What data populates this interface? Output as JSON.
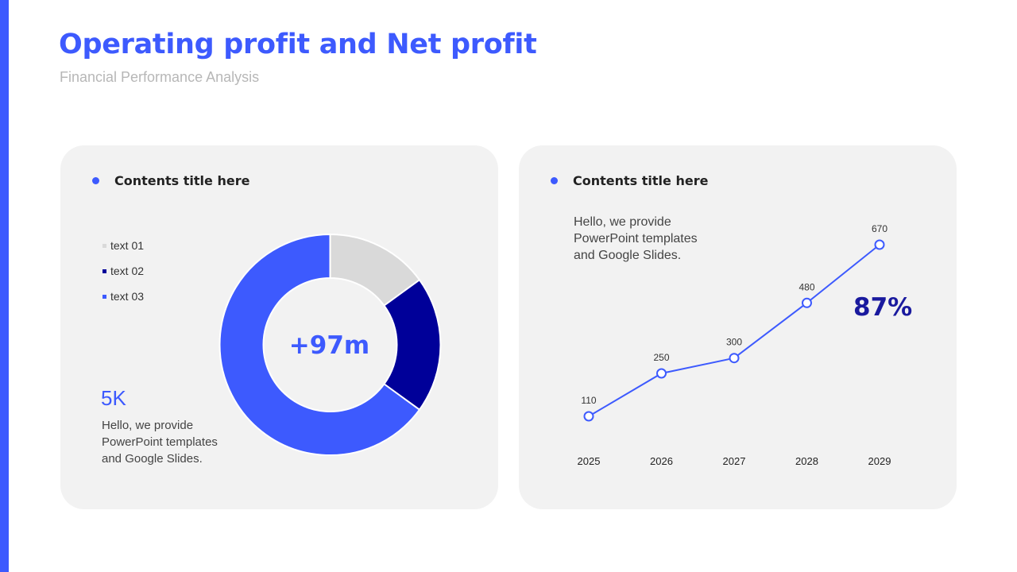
{
  "slide": {
    "title": "Operating profit and Net profit",
    "subtitle": "Financial Performance Analysis"
  },
  "colors": {
    "accent": "#3d5afe",
    "dark_blue": "#000099",
    "light_gray": "#d9d9d9",
    "card_bg": "#f2f2f2"
  },
  "left_panel": {
    "title": "Contents title here",
    "center_label": "+97m",
    "stat_value": "5K",
    "stat_description": "Hello, we provide\nPowerPoint templates\nand Google Slides."
  },
  "right_panel": {
    "title": "Contents title here",
    "description": "Hello, we provide\nPowerPoint templates\nand Google Slides.",
    "highlight_value": "87%"
  },
  "chart_data": [
    {
      "type": "pie",
      "style": "donut",
      "categories": [
        "text 01",
        "text 02",
        "text 03"
      ],
      "values": [
        15,
        20,
        65
      ],
      "colors": [
        "#d9d9d9",
        "#000099",
        "#3d5afe"
      ],
      "legend_position": "left"
    },
    {
      "type": "line",
      "x": [
        "2025",
        "2026",
        "2027",
        "2028",
        "2029"
      ],
      "series": [
        {
          "values": [
            110,
            250,
            300,
            480,
            670
          ]
        }
      ],
      "ylim": [
        0,
        670
      ],
      "grid": false,
      "y_axis_visible": false,
      "data_labels": true
    }
  ]
}
